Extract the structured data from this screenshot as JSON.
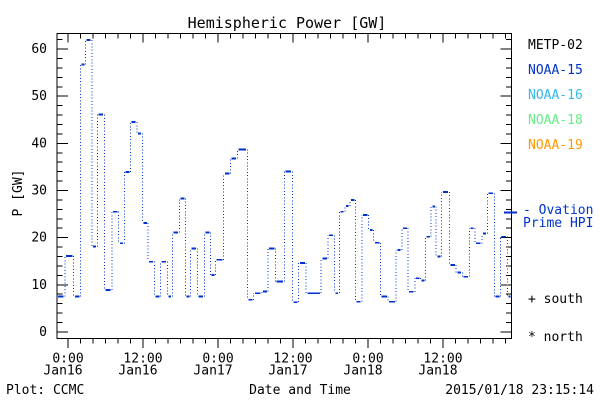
{
  "title": "Hemispheric Power [GW]",
  "footer": {
    "left": "Plot: CCMC",
    "center": "Date and Time",
    "right": "2015/01/18 23:15:14"
  },
  "legend": {
    "satellites": [
      {
        "label": "METP-02",
        "color": "#000000"
      },
      {
        "label": "NOAA-15",
        "color": "#0033CC"
      },
      {
        "label": "NOAA-16",
        "color": "#33BBEE"
      },
      {
        "label": "NOAA-18",
        "color": "#66EE88"
      },
      {
        "label": "NOAA-19",
        "color": "#FF9900"
      }
    ],
    "model": {
      "label_line1": "- Ovation",
      "label_line2": "Prime HPI",
      "color": "#0033CC"
    },
    "markers": [
      {
        "symbol": "+",
        "label": "south"
      },
      {
        "symbol": "*",
        "label": "north"
      }
    ]
  },
  "chart_data": {
    "type": "line",
    "style": "step-histogram",
    "title": "Hemispheric Power [GW]",
    "xlabel": "Date and Time",
    "ylabel": "P [GW]",
    "series_name": "Ovation Prime HPI",
    "line_color": "#0033CC",
    "grid": false,
    "x_units": "hours from 2015-01-16 00:00",
    "xlim": [
      -1.76,
      70.96
    ],
    "ylim": [
      -1.4,
      63.3
    ],
    "y_major_ticks": [
      0,
      10,
      20,
      30,
      40,
      50,
      60
    ],
    "y_minor_step": 2,
    "x_minor_step_hours": 2,
    "x_major_ticks": [
      {
        "t": 0,
        "time": "0:00",
        "date": "Jan16"
      },
      {
        "t": 12,
        "time": "12:00",
        "date": "Jan16"
      },
      {
        "t": 24,
        "time": "0:00",
        "date": "Jan17"
      },
      {
        "t": 36,
        "time": "12:00",
        "date": "Jan17"
      },
      {
        "t": 48,
        "time": "0:00",
        "date": "Jan18"
      },
      {
        "t": 60,
        "time": "12:00",
        "date": "Jan18"
      }
    ],
    "segments_start_hour_value_gw": [
      [
        -1.76,
        7.5
      ],
      [
        -0.5,
        16.1
      ],
      [
        0.9,
        7.5
      ],
      [
        2.0,
        56.7
      ],
      [
        2.8,
        61.9
      ],
      [
        3.8,
        18.1
      ],
      [
        4.7,
        46.1
      ],
      [
        5.8,
        8.9
      ],
      [
        7.0,
        25.5
      ],
      [
        8.1,
        18.8
      ],
      [
        9.0,
        33.9
      ],
      [
        10.0,
        44.5
      ],
      [
        11.0,
        42.1
      ],
      [
        11.9,
        23.1
      ],
      [
        12.8,
        14.9
      ],
      [
        13.8,
        7.5
      ],
      [
        14.8,
        14.9
      ],
      [
        15.9,
        7.5
      ],
      [
        16.7,
        21.1
      ],
      [
        17.8,
        28.3
      ],
      [
        18.8,
        7.5
      ],
      [
        19.6,
        17.7
      ],
      [
        20.7,
        7.5
      ],
      [
        21.8,
        21.1
      ],
      [
        22.8,
        12.1
      ],
      [
        23.6,
        15.3
      ],
      [
        24.9,
        33.6
      ],
      [
        26.0,
        36.8
      ],
      [
        27.1,
        38.7
      ],
      [
        28.7,
        6.8
      ],
      [
        29.7,
        8.2
      ],
      [
        31.0,
        8.6
      ],
      [
        32.0,
        17.7
      ],
      [
        33.2,
        10.7
      ],
      [
        34.6,
        34.0
      ],
      [
        35.9,
        6.3
      ],
      [
        36.9,
        14.6
      ],
      [
        38.1,
        8.2
      ],
      [
        40.5,
        15.6
      ],
      [
        41.6,
        20.5
      ],
      [
        42.6,
        8.2
      ],
      [
        43.4,
        25.5
      ],
      [
        44.3,
        26.7
      ],
      [
        45.1,
        28.0
      ],
      [
        46.0,
        6.4
      ],
      [
        47.0,
        24.8
      ],
      [
        48.1,
        21.6
      ],
      [
        48.9,
        18.9
      ],
      [
        50.0,
        7.5
      ],
      [
        51.2,
        6.4
      ],
      [
        52.5,
        17.4
      ],
      [
        53.4,
        22.0
      ],
      [
        54.4,
        8.5
      ],
      [
        55.5,
        11.4
      ],
      [
        56.4,
        10.9
      ],
      [
        57.2,
        20.2
      ],
      [
        58.1,
        26.6
      ],
      [
        58.9,
        16.0
      ],
      [
        59.8,
        29.7
      ],
      [
        61.0,
        14.2
      ],
      [
        62.1,
        12.6
      ],
      [
        63.1,
        11.7
      ],
      [
        64.2,
        22.0
      ],
      [
        65.1,
        18.8
      ],
      [
        66.2,
        20.9
      ],
      [
        67.1,
        29.4
      ],
      [
        68.2,
        7.5
      ],
      [
        69.2,
        20.2
      ],
      [
        70.3,
        7.5
      ]
    ]
  }
}
